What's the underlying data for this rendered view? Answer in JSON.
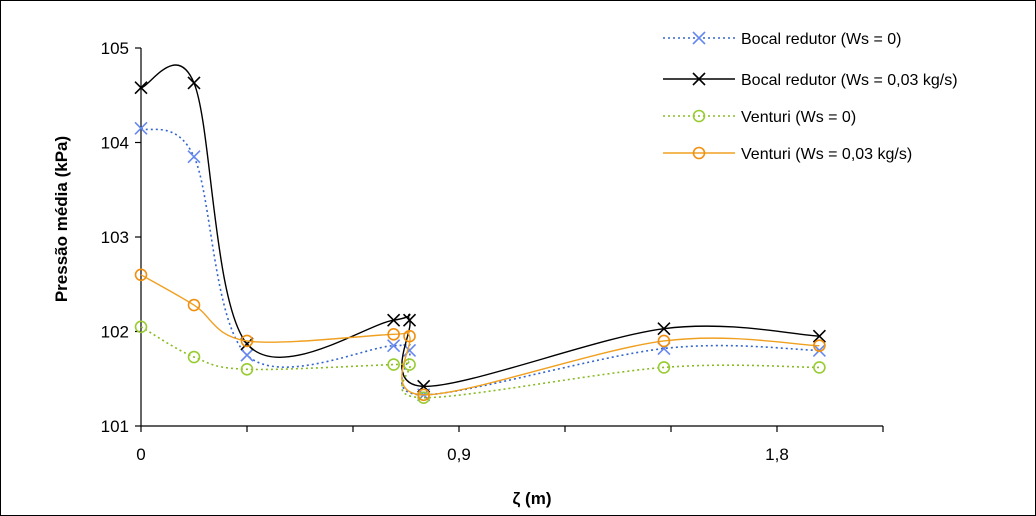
{
  "chart_data": {
    "type": "line",
    "xlabel": "ζ (m)",
    "ylabel": "Pressão média (kPa)",
    "xlim": [
      0,
      2.1
    ],
    "ylim": [
      101,
      105
    ],
    "xticks": [
      0,
      0.9,
      1.8
    ],
    "xtick_labels": [
      "0",
      "0,9",
      "1,8"
    ],
    "yticks": [
      101,
      102,
      103,
      104,
      105
    ],
    "ytick_labels": [
      "101",
      "102",
      "103",
      "104",
      "105"
    ],
    "grid": false,
    "legend_position": "top-right",
    "series": [
      {
        "name": "Bocal redutor (Ws = 0)",
        "color": "#3366cc",
        "line_style": "dotted",
        "marker": "x",
        "marker_color": "#6688ee",
        "x": [
          0,
          0.15,
          0.3,
          0.715,
          0.76,
          0.8,
          1.48,
          1.92
        ],
        "y": [
          104.15,
          103.85,
          101.75,
          101.85,
          101.8,
          101.33,
          101.82,
          101.8
        ]
      },
      {
        "name": "Bocal redutor (Ws = 0,03 kg/s)",
        "color": "#000000",
        "line_style": "solid",
        "marker": "x",
        "marker_color": "#000000",
        "x": [
          0,
          0.15,
          0.3,
          0.715,
          0.76,
          0.8,
          1.48,
          1.92
        ],
        "y": [
          104.58,
          104.63,
          101.87,
          102.12,
          102.12,
          101.42,
          102.03,
          101.95
        ]
      },
      {
        "name": "Venturi (Ws = 0)",
        "color": "#88bb22",
        "line_style": "dotted",
        "marker": "o",
        "marker_color": "#99cc33",
        "x": [
          0,
          0.15,
          0.3,
          0.715,
          0.76,
          0.8,
          1.48,
          1.92
        ],
        "y": [
          102.05,
          101.73,
          101.6,
          101.65,
          101.65,
          101.3,
          101.62,
          101.62
        ]
      },
      {
        "name": "Venturi (Ws = 0,03 kg/s)",
        "color": "#f0a020",
        "line_style": "solid",
        "marker": "o",
        "marker_color": "#f09010",
        "x": [
          0,
          0.15,
          0.3,
          0.715,
          0.76,
          0.8,
          1.48,
          1.92
        ],
        "y": [
          102.6,
          102.28,
          101.9,
          101.97,
          101.95,
          101.33,
          101.9,
          101.85
        ]
      }
    ]
  }
}
